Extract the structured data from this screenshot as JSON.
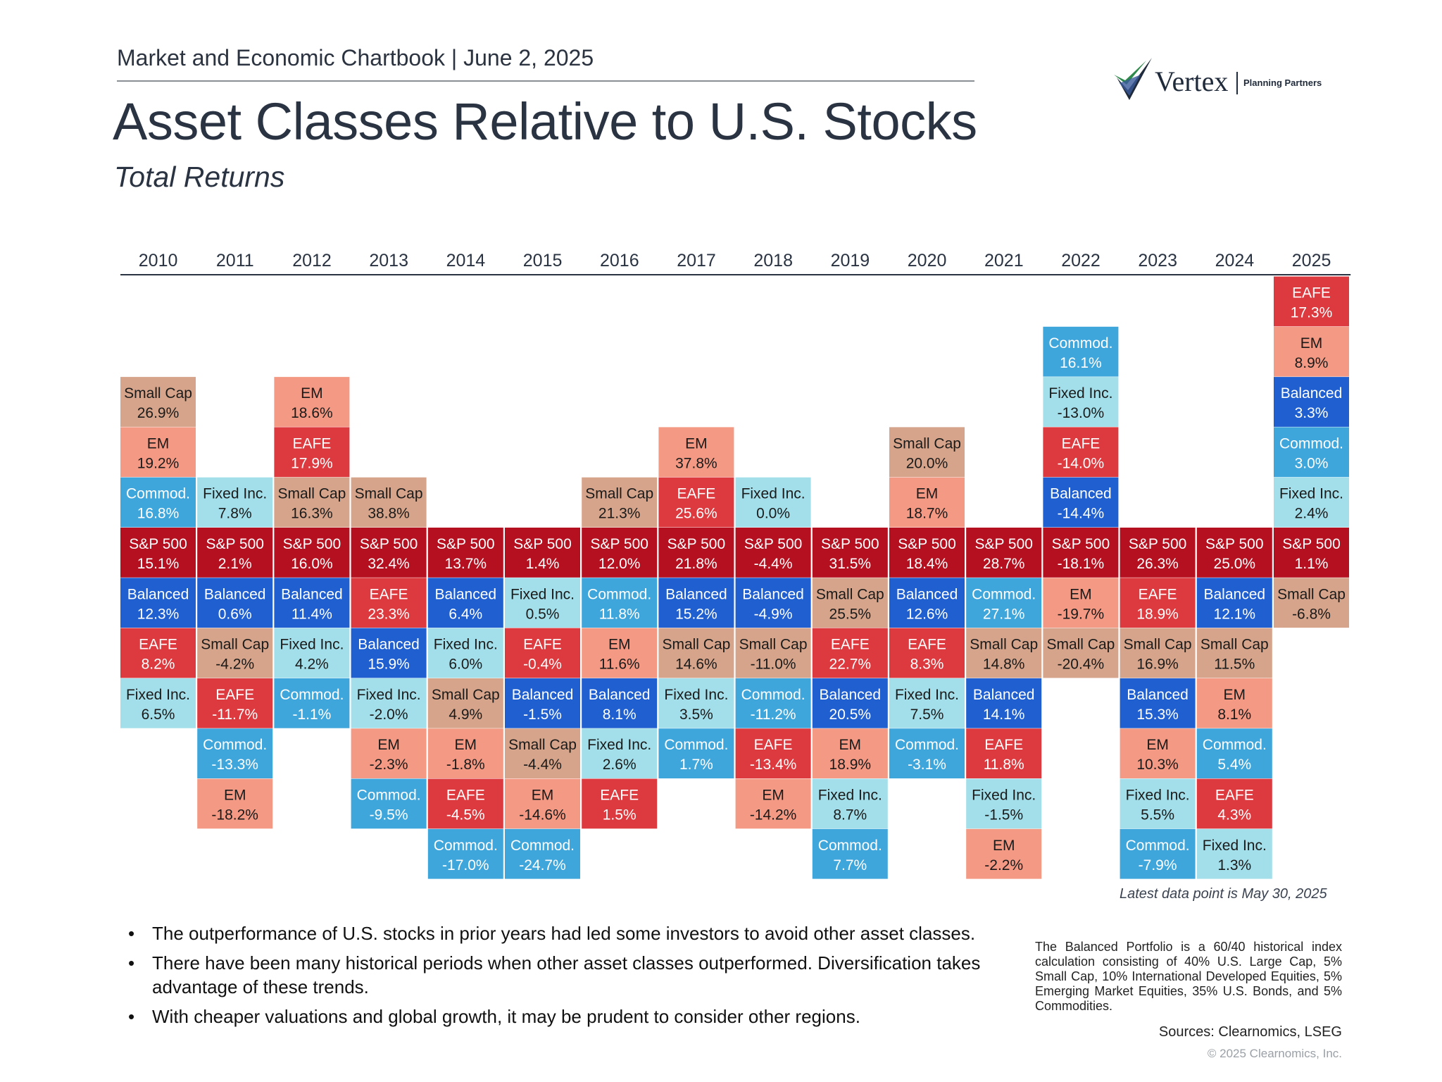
{
  "header": {
    "chartbook": "Market and Economic Chartbook | June 2, 2025",
    "title": "Asset Classes Relative to U.S. Stocks",
    "subtitle": "Total Returns"
  },
  "logo": {
    "name": "Vertex",
    "tagline": "Planning Partners"
  },
  "colors": {
    "S&P 500": "#b5101f",
    "Small Cap": "#d6a48a",
    "EM": "#f49a84",
    "EAFE": "#dc3a3f",
    "Commod.": "#3fa6dc",
    "Fixed Inc.": "#a3dfea",
    "Balanced": "#1f5fd0"
  },
  "text_colors": {
    "S&P 500": "#ffffff",
    "Small Cap": "#1a1a1a",
    "EM": "#1a1a1a",
    "EAFE": "#ffffff",
    "Commod.": "#ffffff",
    "Fixed Inc.": "#1a1a1a",
    "Balanced": "#ffffff"
  },
  "chart_data": {
    "type": "table",
    "description_free": true,
    "years": [
      "2010",
      "2011",
      "2012",
      "2013",
      "2014",
      "2015",
      "2016",
      "2017",
      "2018",
      "2019",
      "2020",
      "2021",
      "2022",
      "2023",
      "2024",
      "2025"
    ],
    "columns": [
      {
        "year": "2010",
        "above": [
          {
            "asset": "Small Cap",
            "value": "26.9%"
          },
          {
            "asset": "EM",
            "value": "19.2%"
          },
          {
            "asset": "Commod.",
            "value": "16.8%"
          }
        ],
        "sp500": "15.1%",
        "below": [
          {
            "asset": "Balanced",
            "value": "12.3%"
          },
          {
            "asset": "EAFE",
            "value": "8.2%"
          },
          {
            "asset": "Fixed Inc.",
            "value": "6.5%"
          }
        ]
      },
      {
        "year": "2011",
        "above": [
          {
            "asset": "Fixed Inc.",
            "value": "7.8%"
          }
        ],
        "sp500": "2.1%",
        "below": [
          {
            "asset": "Balanced",
            "value": "0.6%"
          },
          {
            "asset": "Small Cap",
            "value": "-4.2%"
          },
          {
            "asset": "EAFE",
            "value": "-11.7%"
          },
          {
            "asset": "Commod.",
            "value": "-13.3%"
          },
          {
            "asset": "EM",
            "value": "-18.2%"
          }
        ]
      },
      {
        "year": "2012",
        "above": [
          {
            "asset": "EM",
            "value": "18.6%"
          },
          {
            "asset": "EAFE",
            "value": "17.9%"
          },
          {
            "asset": "Small Cap",
            "value": "16.3%"
          }
        ],
        "sp500": "16.0%",
        "below": [
          {
            "asset": "Balanced",
            "value": "11.4%"
          },
          {
            "asset": "Fixed Inc.",
            "value": "4.2%"
          },
          {
            "asset": "Commod.",
            "value": "-1.1%"
          }
        ]
      },
      {
        "year": "2013",
        "above": [
          {
            "asset": "Small Cap",
            "value": "38.8%"
          }
        ],
        "sp500": "32.4%",
        "below": [
          {
            "asset": "EAFE",
            "value": "23.3%"
          },
          {
            "asset": "Balanced",
            "value": "15.9%"
          },
          {
            "asset": "Fixed Inc.",
            "value": "-2.0%"
          },
          {
            "asset": "EM",
            "value": "-2.3%"
          },
          {
            "asset": "Commod.",
            "value": "-9.5%"
          }
        ]
      },
      {
        "year": "2014",
        "above": [],
        "sp500": "13.7%",
        "below": [
          {
            "asset": "Balanced",
            "value": "6.4%"
          },
          {
            "asset": "Fixed Inc.",
            "value": "6.0%"
          },
          {
            "asset": "Small Cap",
            "value": "4.9%"
          },
          {
            "asset": "EM",
            "value": "-1.8%"
          },
          {
            "asset": "EAFE",
            "value": "-4.5%"
          },
          {
            "asset": "Commod.",
            "value": "-17.0%"
          }
        ]
      },
      {
        "year": "2015",
        "above": [],
        "sp500": "1.4%",
        "below": [
          {
            "asset": "Fixed Inc.",
            "value": "0.5%"
          },
          {
            "asset": "EAFE",
            "value": "-0.4%"
          },
          {
            "asset": "Balanced",
            "value": "-1.5%"
          },
          {
            "asset": "Small Cap",
            "value": "-4.4%"
          },
          {
            "asset": "EM",
            "value": "-14.6%"
          },
          {
            "asset": "Commod.",
            "value": "-24.7%"
          }
        ]
      },
      {
        "year": "2016",
        "above": [
          {
            "asset": "Small Cap",
            "value": "21.3%"
          }
        ],
        "sp500": "12.0%",
        "below": [
          {
            "asset": "Commod.",
            "value": "11.8%"
          },
          {
            "asset": "EM",
            "value": "11.6%"
          },
          {
            "asset": "Balanced",
            "value": "8.1%"
          },
          {
            "asset": "Fixed Inc.",
            "value": "2.6%"
          },
          {
            "asset": "EAFE",
            "value": "1.5%"
          }
        ]
      },
      {
        "year": "2017",
        "above": [
          {
            "asset": "EM",
            "value": "37.8%"
          },
          {
            "asset": "EAFE",
            "value": "25.6%"
          }
        ],
        "sp500": "21.8%",
        "below": [
          {
            "asset": "Balanced",
            "value": "15.2%"
          },
          {
            "asset": "Small Cap",
            "value": "14.6%"
          },
          {
            "asset": "Fixed Inc.",
            "value": "3.5%"
          },
          {
            "asset": "Commod.",
            "value": "1.7%"
          }
        ]
      },
      {
        "year": "2018",
        "above": [
          {
            "asset": "Fixed Inc.",
            "value": "0.0%"
          }
        ],
        "sp500": "-4.4%",
        "below": [
          {
            "asset": "Balanced",
            "value": "-4.9%"
          },
          {
            "asset": "Small Cap",
            "value": "-11.0%"
          },
          {
            "asset": "Commod.",
            "value": "-11.2%"
          },
          {
            "asset": "EAFE",
            "value": "-13.4%"
          },
          {
            "asset": "EM",
            "value": "-14.2%"
          }
        ]
      },
      {
        "year": "2019",
        "above": [],
        "sp500": "31.5%",
        "below": [
          {
            "asset": "Small Cap",
            "value": "25.5%"
          },
          {
            "asset": "EAFE",
            "value": "22.7%"
          },
          {
            "asset": "Balanced",
            "value": "20.5%"
          },
          {
            "asset": "EM",
            "value": "18.9%"
          },
          {
            "asset": "Fixed Inc.",
            "value": "8.7%"
          },
          {
            "asset": "Commod.",
            "value": "7.7%"
          }
        ]
      },
      {
        "year": "2020",
        "above": [
          {
            "asset": "Small Cap",
            "value": "20.0%"
          },
          {
            "asset": "EM",
            "value": "18.7%"
          }
        ],
        "sp500": "18.4%",
        "below": [
          {
            "asset": "Balanced",
            "value": "12.6%"
          },
          {
            "asset": "EAFE",
            "value": "8.3%"
          },
          {
            "asset": "Fixed Inc.",
            "value": "7.5%"
          },
          {
            "asset": "Commod.",
            "value": "-3.1%"
          }
        ]
      },
      {
        "year": "2021",
        "above": [],
        "sp500": "28.7%",
        "below": [
          {
            "asset": "Commod.",
            "value": "27.1%"
          },
          {
            "asset": "Small Cap",
            "value": "14.8%"
          },
          {
            "asset": "Balanced",
            "value": "14.1%"
          },
          {
            "asset": "EAFE",
            "value": "11.8%"
          },
          {
            "asset": "Fixed Inc.",
            "value": "-1.5%"
          },
          {
            "asset": "EM",
            "value": "-2.2%"
          }
        ]
      },
      {
        "year": "2022",
        "above": [
          {
            "asset": "Commod.",
            "value": "16.1%"
          },
          {
            "asset": "Fixed Inc.",
            "value": "-13.0%"
          },
          {
            "asset": "EAFE",
            "value": "-14.0%"
          },
          {
            "asset": "Balanced",
            "value": "-14.4%"
          }
        ],
        "sp500": "-18.1%",
        "below": [
          {
            "asset": "EM",
            "value": "-19.7%"
          },
          {
            "asset": "Small Cap",
            "value": "-20.4%"
          }
        ]
      },
      {
        "year": "2023",
        "above": [],
        "sp500": "26.3%",
        "below": [
          {
            "asset": "EAFE",
            "value": "18.9%"
          },
          {
            "asset": "Small Cap",
            "value": "16.9%"
          },
          {
            "asset": "Balanced",
            "value": "15.3%"
          },
          {
            "asset": "EM",
            "value": "10.3%"
          },
          {
            "asset": "Fixed Inc.",
            "value": "5.5%"
          },
          {
            "asset": "Commod.",
            "value": "-7.9%"
          }
        ]
      },
      {
        "year": "2024",
        "above": [],
        "sp500": "25.0%",
        "below": [
          {
            "asset": "Balanced",
            "value": "12.1%"
          },
          {
            "asset": "Small Cap",
            "value": "11.5%"
          },
          {
            "asset": "EM",
            "value": "8.1%"
          },
          {
            "asset": "Commod.",
            "value": "5.4%"
          },
          {
            "asset": "EAFE",
            "value": "4.3%"
          },
          {
            "asset": "Fixed Inc.",
            "value": "1.3%"
          }
        ]
      },
      {
        "year": "2025",
        "above": [
          {
            "asset": "EAFE",
            "value": "17.3%"
          },
          {
            "asset": "EM",
            "value": "8.9%"
          },
          {
            "asset": "Balanced",
            "value": "3.3%"
          },
          {
            "asset": "Commod.",
            "value": "3.0%"
          },
          {
            "asset": "Fixed Inc.",
            "value": "2.4%"
          }
        ],
        "sp500": "1.1%",
        "below": [
          {
            "asset": "Small Cap",
            "value": "-6.8%"
          }
        ]
      }
    ]
  },
  "latest_note": "Latest data point is May 30, 2025",
  "bullets": [
    "The outperformance of U.S. stocks in prior years had led some investors to avoid other asset classes.",
    "There have been many historical periods when other asset classes outperformed. Diversification takes advantage of these trends.",
    "With cheaper valuations and global growth, it may be prudent to consider other regions."
  ],
  "bullet_glyph": "•",
  "balanced_note": "The Balanced Portfolio is a 60/40 historical index calculation consisting of 40% U.S. Large Cap, 5% Small Cap, 10% International Developed Equities, 5% Emerging Market Equities, 35% U.S. Bonds, and 5% Commodities.",
  "sources": "Sources: Clearnomics, LSEG",
  "copyright": "© 2025 Clearnomics, Inc."
}
